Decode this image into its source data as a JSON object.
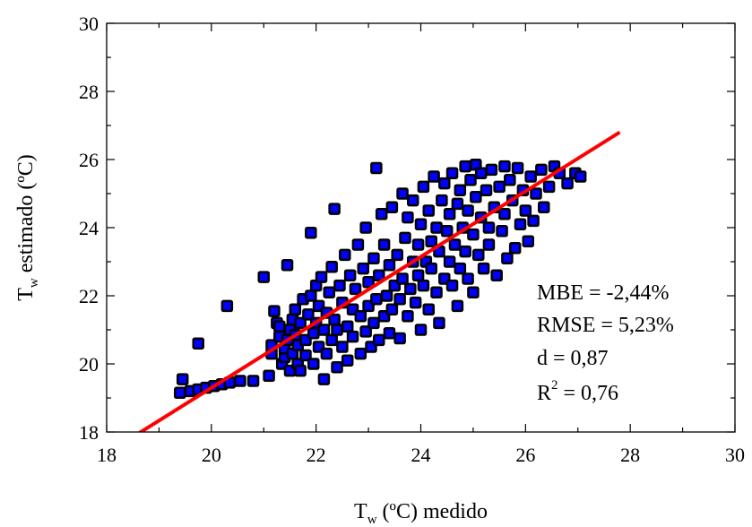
{
  "chart_data": {
    "type": "scatter",
    "title": "",
    "xlabel": {
      "main": "T",
      "sub": "w",
      "rest": " (ºC) medido"
    },
    "ylabel": {
      "main": "T",
      "sub": "w",
      "rest": " estimado (ºC)"
    },
    "xlim": [
      18,
      30
    ],
    "ylim": [
      18,
      30
    ],
    "xticks": [
      "18",
      "20",
      "22",
      "24",
      "26",
      "28",
      "30"
    ],
    "yticks": [
      "18",
      "20",
      "22",
      "24",
      "26",
      "28",
      "30"
    ],
    "grid": false,
    "marker": {
      "shape": "square",
      "fill": "#0000ff",
      "stroke": "#000000"
    },
    "fit_line": {
      "color": "#ff0000",
      "x": [
        18.6,
        27.8
      ],
      "y": [
        17.95,
        26.8
      ]
    },
    "stats": [
      {
        "text": "MBE = -2,44%"
      },
      {
        "text": "RMSE = 5,23%"
      },
      {
        "text": "d = 0,87"
      },
      {
        "pre": "R",
        "sup": "2",
        "post": " = 0,76"
      }
    ],
    "series": [
      {
        "points": [
          [
            19.4,
            19.15
          ],
          [
            19.45,
            19.55
          ],
          [
            19.6,
            19.2
          ],
          [
            19.75,
            19.25
          ],
          [
            19.75,
            20.6
          ],
          [
            19.9,
            19.3
          ],
          [
            20.05,
            19.35
          ],
          [
            20.2,
            19.4
          ],
          [
            20.3,
            21.7
          ],
          [
            20.35,
            19.45
          ],
          [
            20.55,
            19.5
          ],
          [
            20.8,
            19.5
          ],
          [
            21.0,
            22.55
          ],
          [
            21.1,
            19.65
          ],
          [
            21.15,
            20.3
          ],
          [
            21.15,
            20.55
          ],
          [
            21.2,
            21.55
          ],
          [
            21.25,
            21.2
          ],
          [
            21.3,
            20.8
          ],
          [
            21.3,
            21.1
          ],
          [
            21.35,
            20.0
          ],
          [
            21.4,
            20.2
          ],
          [
            21.4,
            20.45
          ],
          [
            21.45,
            20.7
          ],
          [
            21.45,
            22.9
          ],
          [
            21.5,
            19.8
          ],
          [
            21.5,
            21.0
          ],
          [
            21.55,
            20.3
          ],
          [
            21.55,
            21.3
          ],
          [
            21.6,
            20.85
          ],
          [
            21.6,
            21.6
          ],
          [
            21.65,
            20.0
          ],
          [
            21.65,
            20.55
          ],
          [
            21.7,
            19.8
          ],
          [
            21.7,
            21.2
          ],
          [
            21.75,
            21.9
          ],
          [
            21.8,
            20.25
          ],
          [
            21.8,
            20.7
          ],
          [
            21.85,
            21.45
          ],
          [
            21.9,
            22.0
          ],
          [
            21.9,
            23.85
          ],
          [
            21.95,
            20.0
          ],
          [
            21.95,
            20.9
          ],
          [
            22.0,
            21.2
          ],
          [
            22.0,
            22.3
          ],
          [
            22.05,
            20.5
          ],
          [
            22.05,
            21.7
          ],
          [
            22.1,
            22.55
          ],
          [
            22.15,
            19.55
          ],
          [
            22.15,
            21.0
          ],
          [
            22.2,
            20.3
          ],
          [
            22.2,
            21.5
          ],
          [
            22.25,
            22.1
          ],
          [
            22.3,
            20.7
          ],
          [
            22.3,
            22.85
          ],
          [
            22.35,
            21.3
          ],
          [
            22.35,
            24.55
          ],
          [
            22.4,
            19.9
          ],
          [
            22.4,
            21.0
          ],
          [
            22.45,
            22.3
          ],
          [
            22.5,
            20.5
          ],
          [
            22.5,
            21.8
          ],
          [
            22.55,
            23.2
          ],
          [
            22.6,
            20.1
          ],
          [
            22.6,
            21.1
          ],
          [
            22.65,
            22.6
          ],
          [
            22.7,
            20.8
          ],
          [
            22.7,
            21.6
          ],
          [
            22.75,
            22.2
          ],
          [
            22.8,
            23.5
          ],
          [
            22.85,
            20.3
          ],
          [
            22.85,
            21.4
          ],
          [
            22.9,
            22.8
          ],
          [
            22.95,
            20.95
          ],
          [
            22.95,
            24.0
          ],
          [
            23.0,
            21.7
          ],
          [
            23.0,
            22.4
          ],
          [
            23.05,
            20.5
          ],
          [
            23.1,
            21.2
          ],
          [
            23.1,
            23.1
          ],
          [
            23.15,
            21.9
          ],
          [
            23.15,
            25.75
          ],
          [
            23.2,
            20.7
          ],
          [
            23.2,
            22.6
          ],
          [
            23.25,
            24.4
          ],
          [
            23.3,
            21.4
          ],
          [
            23.3,
            23.5
          ],
          [
            23.35,
            22.0
          ],
          [
            23.4,
            20.9
          ],
          [
            23.4,
            22.9
          ],
          [
            23.45,
            21.6
          ],
          [
            23.45,
            24.6
          ],
          [
            23.5,
            22.3
          ],
          [
            23.55,
            23.2
          ],
          [
            23.6,
            20.75
          ],
          [
            23.6,
            21.9
          ],
          [
            23.65,
            22.5
          ],
          [
            23.65,
            25.0
          ],
          [
            23.7,
            23.7
          ],
          [
            23.75,
            21.4
          ],
          [
            23.75,
            24.3
          ],
          [
            23.8,
            22.2
          ],
          [
            23.85,
            23.0
          ],
          [
            23.85,
            24.8
          ],
          [
            23.9,
            21.8
          ],
          [
            23.95,
            22.6
          ],
          [
            23.95,
            23.5
          ],
          [
            24.0,
            21.0
          ],
          [
            24.0,
            24.1
          ],
          [
            24.05,
            22.3
          ],
          [
            24.05,
            25.2
          ],
          [
            24.1,
            23.0
          ],
          [
            24.15,
            21.6
          ],
          [
            24.15,
            24.5
          ],
          [
            24.2,
            22.8
          ],
          [
            24.2,
            23.6
          ],
          [
            24.25,
            25.5
          ],
          [
            24.3,
            22.1
          ],
          [
            24.3,
            24.0
          ],
          [
            24.35,
            21.2
          ],
          [
            24.35,
            23.3
          ],
          [
            24.4,
            24.8
          ],
          [
            24.45,
            22.5
          ],
          [
            24.45,
            25.3
          ],
          [
            24.5,
            23.9
          ],
          [
            24.55,
            23.0
          ],
          [
            24.55,
            24.4
          ],
          [
            24.6,
            22.3
          ],
          [
            24.6,
            25.6
          ],
          [
            24.65,
            23.5
          ],
          [
            24.7,
            21.7
          ],
          [
            24.7,
            24.7
          ],
          [
            24.75,
            22.8
          ],
          [
            24.75,
            25.1
          ],
          [
            24.8,
            24.0
          ],
          [
            24.85,
            23.3
          ],
          [
            24.85,
            25.8
          ],
          [
            24.9,
            22.5
          ],
          [
            24.9,
            24.5
          ],
          [
            24.95,
            25.4
          ],
          [
            25.0,
            22.1
          ],
          [
            25.0,
            23.8
          ],
          [
            25.05,
            24.9
          ],
          [
            25.05,
            25.85
          ],
          [
            25.1,
            23.2
          ],
          [
            25.15,
            24.3
          ],
          [
            25.15,
            25.6
          ],
          [
            25.2,
            22.8
          ],
          [
            25.25,
            25.1
          ],
          [
            25.3,
            24.0
          ],
          [
            25.3,
            23.5
          ],
          [
            25.35,
            25.7
          ],
          [
            25.4,
            24.6
          ],
          [
            25.45,
            22.6
          ],
          [
            25.5,
            25.2
          ],
          [
            25.55,
            23.9
          ],
          [
            25.6,
            25.8
          ],
          [
            25.6,
            24.4
          ],
          [
            25.65,
            23.1
          ],
          [
            25.7,
            25.4
          ],
          [
            25.75,
            24.8
          ],
          [
            25.8,
            23.4
          ],
          [
            25.85,
            25.75
          ],
          [
            25.9,
            24.1
          ],
          [
            25.95,
            25.1
          ],
          [
            26.0,
            24.5
          ],
          [
            26.05,
            23.6
          ],
          [
            26.1,
            25.5
          ],
          [
            26.15,
            24.2
          ],
          [
            26.2,
            25.0
          ],
          [
            26.3,
            25.7
          ],
          [
            26.35,
            24.6
          ],
          [
            26.45,
            25.2
          ],
          [
            26.55,
            25.8
          ],
          [
            26.65,
            25.6
          ],
          [
            26.8,
            25.3
          ],
          [
            26.95,
            25.6
          ],
          [
            27.05,
            25.5
          ]
        ]
      }
    ]
  }
}
